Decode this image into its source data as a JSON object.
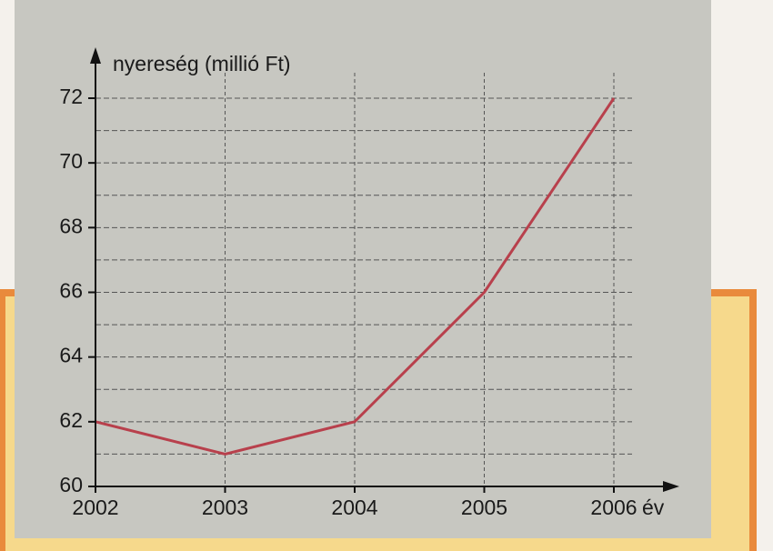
{
  "chart_data": {
    "type": "line",
    "ylabel": "nyereség (millió Ft)",
    "xlabel": "év",
    "x": [
      2002,
      2003,
      2004,
      2005,
      2006
    ],
    "series": [
      {
        "name": "nyereség",
        "color": "#b8404c",
        "values": [
          62,
          61,
          62,
          66,
          72
        ]
      }
    ],
    "xlim": [
      2002,
      2006
    ],
    "xticks": [
      2002,
      2003,
      2004,
      2005,
      2006
    ],
    "ylim": [
      60,
      72
    ],
    "yticks": [
      60,
      62,
      64,
      66,
      68,
      70,
      72
    ],
    "yminor": [
      61,
      63,
      65,
      67,
      69,
      71
    ],
    "grid": true
  }
}
